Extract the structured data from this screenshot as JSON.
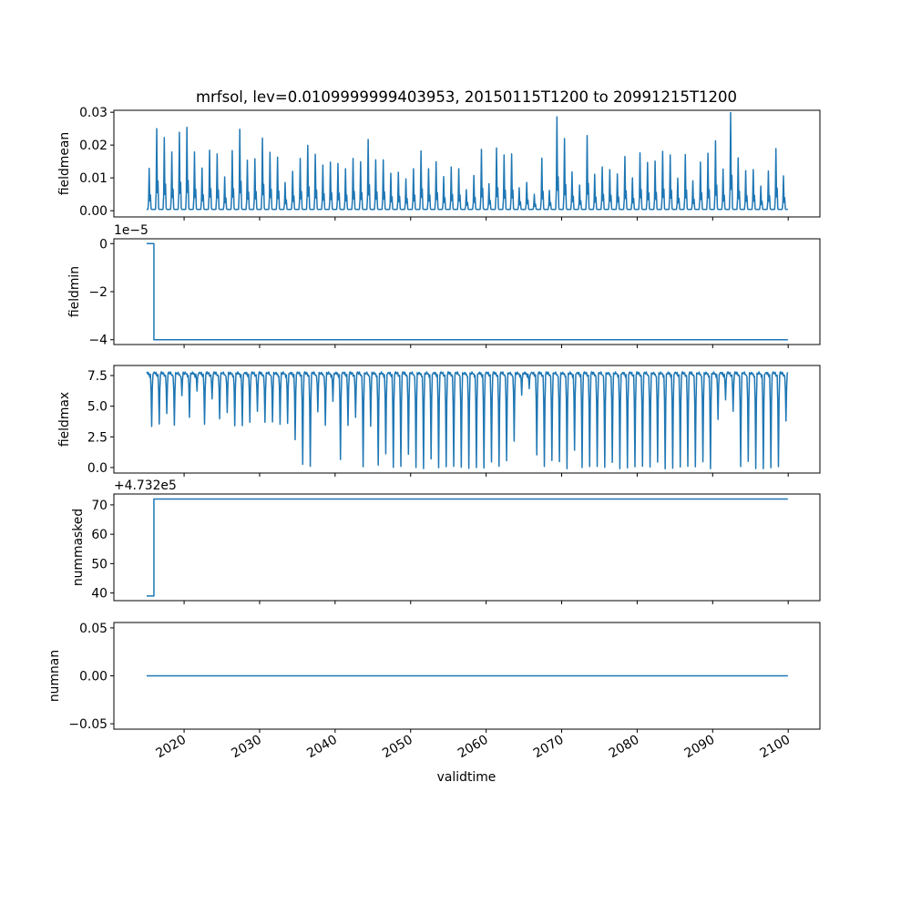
{
  "chart_data": {
    "type": "line",
    "title": "mrfsol, lev=0.0109999999403953, 20150115T1200 to 20991215T1200",
    "xlabel": "validtime",
    "x_ticks": [
      2020,
      2030,
      2040,
      2050,
      2060,
      2070,
      2080,
      2090,
      2100
    ],
    "x_tick_labels": [
      "2020",
      "2030",
      "2040",
      "2050",
      "2060",
      "2070",
      "2080",
      "2090",
      "2100"
    ],
    "xlim": [
      2010.7,
      2104.2
    ],
    "time_range": {
      "start_year": 2015,
      "end_year": 2099,
      "frequency": "monthly"
    },
    "line_color": "#1f77b4",
    "panels": [
      {
        "ylabel": "fieldmean",
        "ylim": [
          -0.0019,
          0.0306
        ],
        "y_ticks": [
          0,
          0.01,
          0.02,
          0.03
        ],
        "y_tick_labels": [
          "0.00",
          "0.01",
          "0.02",
          "0.03"
        ],
        "offset_text": "",
        "model": "annual_peak",
        "annual_peak_values": [
          0.0125,
          0.0246,
          0.0219,
          0.0175,
          0.0235,
          0.025,
          0.0175,
          0.0126,
          0.018,
          0.0169,
          0.0099,
          0.0179,
          0.0244,
          0.015,
          0.0154,
          0.0217,
          0.0174,
          0.0159,
          0.0082,
          0.0116,
          0.0155,
          0.0195,
          0.0168,
          0.0135,
          0.0144,
          0.014,
          0.0124,
          0.0155,
          0.0145,
          0.0213,
          0.0151,
          0.0151,
          0.011,
          0.0113,
          0.0093,
          0.0124,
          0.0178,
          0.0124,
          0.0145,
          0.01,
          0.0129,
          0.0124,
          0.006,
          0.0103,
          0.0183,
          0.0078,
          0.0187,
          0.0166,
          0.0169,
          0.0066,
          0.0082,
          0.0046,
          0.0156,
          0.0058,
          0.0282,
          0.0216,
          0.0114,
          0.0074,
          0.0225,
          0.0107,
          0.0129,
          0.0121,
          0.0108,
          0.0161,
          0.0096,
          0.0172,
          0.0143,
          0.0147,
          0.0177,
          0.0166,
          0.0095,
          0.0167,
          0.0087,
          0.0144,
          0.0171,
          0.0209,
          0.0123,
          0.0295,
          0.0157,
          0.0118,
          0.0121,
          0.0071,
          0.0117,
          0.0185,
          0.0102
        ]
      },
      {
        "ylabel": "fieldmin",
        "ylim": [
          -4.2,
          0.2
        ],
        "y_ticks": [
          0,
          -2,
          -4
        ],
        "y_tick_labels": [
          "0",
          "−2",
          "−4"
        ],
        "offset_text": "1e−5",
        "model": "step",
        "step": {
          "before": 0,
          "after": -4.0,
          "at_year": 2016.0
        }
      },
      {
        "ylabel": "fieldmax",
        "ylim": [
          -0.45,
          8.32
        ],
        "y_ticks": [
          0,
          2.5,
          5,
          7.5
        ],
        "y_tick_labels": [
          "0.0",
          "2.5",
          "5.0",
          "7.5"
        ],
        "offset_text": "",
        "model": "annual_dip",
        "seasonal_max": 7.7,
        "annual_min_values": [
          3.4,
          3.5,
          4.3,
          3.4,
          5.9,
          4.2,
          6.3,
          3.5,
          5.5,
          3.9,
          4.5,
          3.5,
          3.5,
          3.7,
          4.5,
          3.6,
          3.7,
          3.6,
          3.7,
          2.3,
          0.2,
          0.0,
          4.5,
          3.5,
          5.5,
          0.7,
          3.4,
          4.0,
          0.0,
          3.4,
          0.3,
          1.2,
          0.0,
          0.0,
          1.0,
          0.0,
          0.0,
          0.8,
          0.0,
          0.0,
          0.0,
          0.0,
          0.0,
          0.1,
          0.0,
          0.4,
          0.0,
          0.5,
          2.2,
          6.0,
          6.5,
          1.0,
          0.0,
          0.5,
          0.5,
          0.0,
          1.5,
          0.0,
          0.0,
          0.0,
          0.0,
          0.5,
          0.0,
          0.0,
          0.0,
          0.0,
          0.0,
          0.5,
          0.0,
          0.0,
          0.0,
          0.0,
          0.0,
          0.5,
          0.0,
          4.0,
          5.5,
          4.5,
          0.0,
          0.5,
          0.0,
          0.0,
          0.0,
          0.0,
          3.7
        ]
      },
      {
        "ylabel": "nummasked",
        "ylim": [
          37.4,
          73.7
        ],
        "y_ticks": [
          40,
          50,
          60,
          70
        ],
        "y_tick_labels": [
          "40",
          "50",
          "60",
          "70"
        ],
        "offset_text": "+4.732e5",
        "model": "step",
        "step": {
          "before": 39,
          "after": 72,
          "at_year": 2016.0
        }
      },
      {
        "ylabel": "numnan",
        "ylim": [
          -0.0556,
          0.0556
        ],
        "y_ticks": [
          0.05,
          0,
          -0.05
        ],
        "y_tick_labels": [
          "0.05",
          "0.00",
          "−0.05"
        ],
        "offset_text": "",
        "model": "constant",
        "constant": 0
      }
    ]
  }
}
